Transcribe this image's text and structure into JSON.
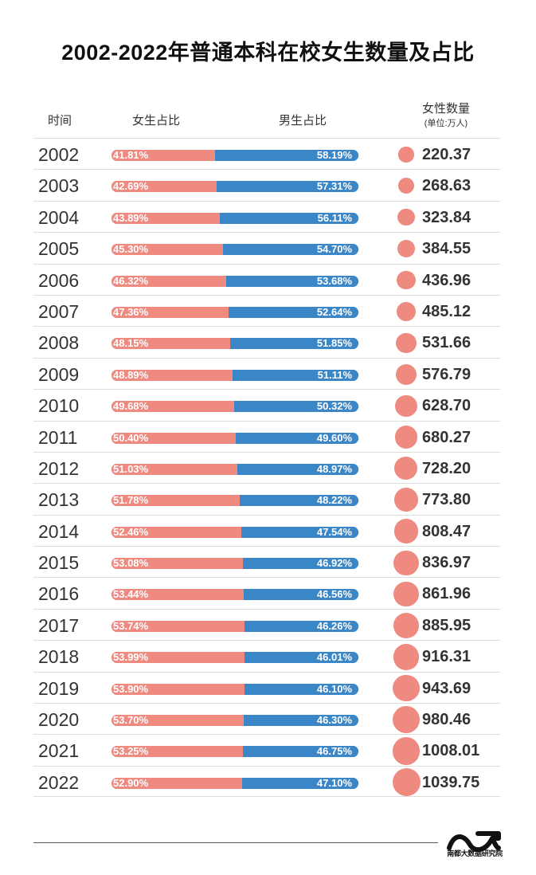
{
  "header": {
    "title": "2002-2022年普通本科在校女生数量及占比",
    "col_year": "时间",
    "col_female": "女生占比",
    "col_male": "男生占比",
    "col_count": "女性数量",
    "col_count_unit": "(单位:万人)"
  },
  "footer": {
    "brand": "南都大数据研究院"
  },
  "colors": {
    "female": "#ee8a80",
    "male": "#3a86c6"
  },
  "chart_data": {
    "type": "table",
    "title": "2002-2022年普通本科在校女生数量及占比",
    "rows": [
      {
        "year": "2002",
        "female_pct": "41.81%",
        "male_pct": "58.19%",
        "female_count": "220.37"
      },
      {
        "year": "2003",
        "female_pct": "42.69%",
        "male_pct": "57.31%",
        "female_count": "268.63"
      },
      {
        "year": "2004",
        "female_pct": "43.89%",
        "male_pct": "56.11%",
        "female_count": "323.84"
      },
      {
        "year": "2005",
        "female_pct": "45.30%",
        "male_pct": "54.70%",
        "female_count": "384.55"
      },
      {
        "year": "2006",
        "female_pct": "46.32%",
        "male_pct": "53.68%",
        "female_count": "436.96"
      },
      {
        "year": "2007",
        "female_pct": "47.36%",
        "male_pct": "52.64%",
        "female_count": "485.12"
      },
      {
        "year": "2008",
        "female_pct": "48.15%",
        "male_pct": "51.85%",
        "female_count": "531.66"
      },
      {
        "year": "2009",
        "female_pct": "48.89%",
        "male_pct": "51.11%",
        "female_count": "576.79"
      },
      {
        "year": "2010",
        "female_pct": "49.68%",
        "male_pct": "50.32%",
        "female_count": "628.70"
      },
      {
        "year": "2011",
        "female_pct": "50.40%",
        "male_pct": "49.60%",
        "female_count": "680.27"
      },
      {
        "year": "2012",
        "female_pct": "51.03%",
        "male_pct": "48.97%",
        "female_count": "728.20"
      },
      {
        "year": "2013",
        "female_pct": "51.78%",
        "male_pct": "48.22%",
        "female_count": "773.80"
      },
      {
        "year": "2014",
        "female_pct": "52.46%",
        "male_pct": "47.54%",
        "female_count": "808.47"
      },
      {
        "year": "2015",
        "female_pct": "53.08%",
        "male_pct": "46.92%",
        "female_count": "836.97"
      },
      {
        "year": "2016",
        "female_pct": "53.44%",
        "male_pct": "46.56%",
        "female_count": "861.96"
      },
      {
        "year": "2017",
        "female_pct": "53.74%",
        "male_pct": "46.26%",
        "female_count": "885.95"
      },
      {
        "year": "2018",
        "female_pct": "53.99%",
        "male_pct": "46.01%",
        "female_count": "916.31"
      },
      {
        "year": "2019",
        "female_pct": "53.90%",
        "male_pct": "46.10%",
        "female_count": "943.69"
      },
      {
        "year": "2020",
        "female_pct": "53.70%",
        "male_pct": "46.30%",
        "female_count": "980.46"
      },
      {
        "year": "2021",
        "female_pct": "53.25%",
        "male_pct": "46.75%",
        "female_count": "1008.01"
      },
      {
        "year": "2022",
        "female_pct": "52.90%",
        "male_pct": "47.10%",
        "female_count": "1039.75"
      }
    ]
  }
}
